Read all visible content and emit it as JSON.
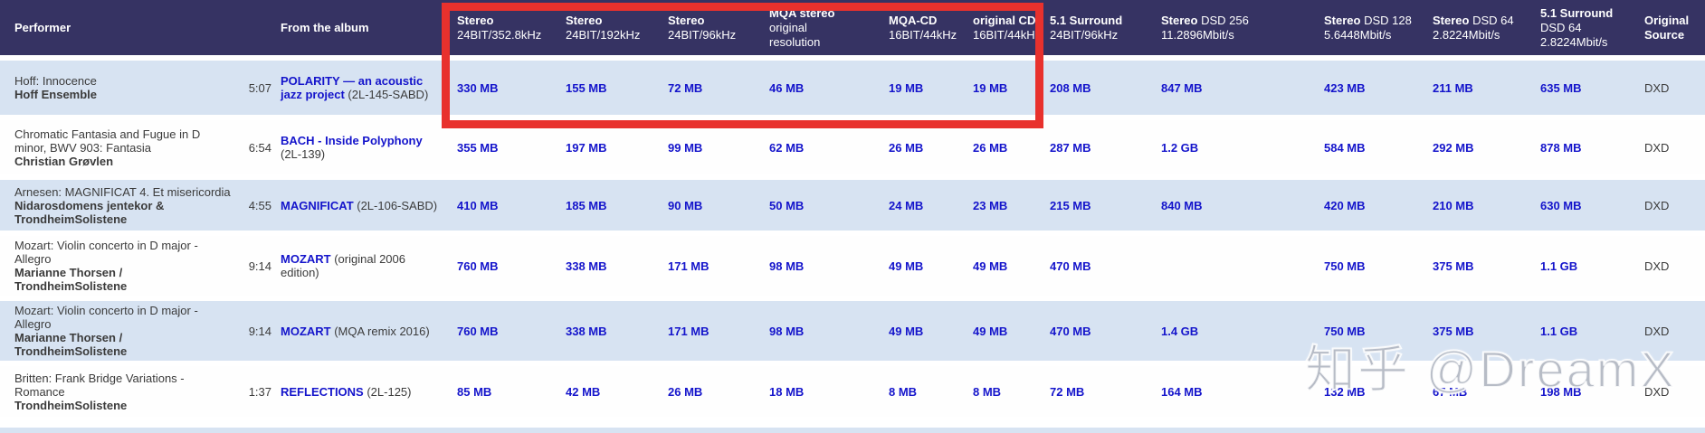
{
  "table": {
    "headers": [
      {
        "key": "performer",
        "strong": "Performer",
        "inline": "",
        "sub": ""
      },
      {
        "key": "duration",
        "strong": "",
        "inline": "",
        "sub": ""
      },
      {
        "key": "from-the-album",
        "strong": "From the album",
        "inline": "",
        "sub": ""
      },
      {
        "key": "stereo-24bit-352-8khz",
        "strong": "Stereo",
        "inline": "",
        "sub": "24BIT/352.8kHz"
      },
      {
        "key": "stereo-24bit-192khz",
        "strong": "Stereo",
        "inline": "",
        "sub": "24BIT/192kHz"
      },
      {
        "key": "stereo-24bit-96khz",
        "strong": "Stereo",
        "inline": "",
        "sub": "24BIT/96kHz"
      },
      {
        "key": "mqa-stereo",
        "strong": "MQA stereo",
        "inline": "",
        "sub": "original\nresolution"
      },
      {
        "key": "mqa-cd",
        "strong": "MQA-CD",
        "inline": "",
        "sub": "16BIT/44kHz"
      },
      {
        "key": "original-cd",
        "strong": "original CD",
        "inline": "",
        "sub": "16BIT/44kHz"
      },
      {
        "key": "5-1-surround-24bit-96khz",
        "strong": "5.1 Surround",
        "inline": "",
        "sub": "24BIT/96kHz"
      },
      {
        "key": "stereo-dsd-256",
        "strong": "Stereo",
        "inline": "DSD 256",
        "sub": "11.2896Mbit/s"
      },
      {
        "key": "stereo-dsd-128",
        "strong": "Stereo",
        "inline": "DSD 128",
        "sub": "5.6448Mbit/s"
      },
      {
        "key": "stereo-dsd-64",
        "strong": "Stereo",
        "inline": "DSD 64",
        "sub": "2.8224Mbit/s"
      },
      {
        "key": "5-1-surround-dsd-64",
        "strong": "5.1 Surround",
        "inline": "",
        "sub": "DSD 64\n2.8224Mbit/s"
      },
      {
        "key": "original-source",
        "strong": "Original\nSource",
        "inline": "",
        "sub": ""
      }
    ],
    "rows": [
      {
        "performer_title": "Hoff: Innocence",
        "performer_name": "Hoff Ensemble",
        "duration": "5:07",
        "album_link": "POLARITY — an acoustic\njazz project",
        "album_rest": " (2L-145-SABD)",
        "sizes": [
          "330 MB",
          "155 MB",
          "72 MB",
          "46 MB",
          "19 MB",
          "19 MB",
          "208 MB",
          "847 MB",
          "423 MB",
          "211 MB",
          "635 MB"
        ],
        "source": "DXD"
      },
      {
        "performer_title": "Chromatic Fantasia and Fugue in D\nminor, BWV 903: Fantasia",
        "performer_name": "Christian Grøvlen",
        "duration": "6:54",
        "album_link": "BACH - Inside Polyphony",
        "album_rest": "\n(2L-139)",
        "sizes": [
          "355 MB",
          "197 MB",
          "99 MB",
          "62 MB",
          "26 MB",
          "26 MB",
          "287 MB",
          "1.2 GB",
          "584 MB",
          "292 MB",
          "878 MB"
        ],
        "source": "DXD"
      },
      {
        "performer_title": "Arnesen: MAGNIFICAT 4. Et misericordia",
        "performer_name": "Nidarosdomens jentekor &\nTrondheimSolistene",
        "duration": "4:55",
        "album_link": "MAGNIFICAT",
        "album_rest": " (2L-106-SABD)",
        "sizes": [
          "410 MB",
          "185 MB",
          "90 MB",
          "50 MB",
          "24 MB",
          "23 MB",
          "215 MB",
          "840 MB",
          "420 MB",
          "210 MB",
          "630 MB"
        ],
        "source": "DXD"
      },
      {
        "performer_title": "Mozart: Violin concerto in D major -\nAllegro",
        "performer_name": "Marianne Thorsen /\nTrondheimSolistene",
        "duration": "9:14",
        "album_link": "MOZART",
        "album_rest": " (original 2006\nedition)",
        "sizes": [
          "760 MB",
          "338 MB",
          "171 MB",
          "98 MB",
          "49 MB",
          "49 MB",
          "470 MB",
          "",
          "750 MB",
          "375 MB",
          "1.1 GB"
        ],
        "source": "DXD"
      },
      {
        "performer_title": "Mozart: Violin concerto in D major -\nAllegro",
        "performer_name": "Marianne Thorsen /\nTrondheimSolistene",
        "duration": "9:14",
        "album_link": "MOZART",
        "album_rest": " (MQA remix 2016)",
        "sizes": [
          "760 MB",
          "338 MB",
          "171 MB",
          "98 MB",
          "49 MB",
          "49 MB",
          "470 MB",
          "1.4 GB",
          "750 MB",
          "375 MB",
          "1.1 GB"
        ],
        "source": "DXD"
      },
      {
        "performer_title": "Britten: Frank Bridge Variations -\nRomance",
        "performer_name": "TrondheimSolistene",
        "duration": "1:37",
        "album_link": "REFLECTIONS",
        "album_rest": " (2L-125)",
        "sizes": [
          "85 MB",
          "42 MB",
          "26 MB",
          "18 MB",
          "8 MB",
          "8 MB",
          "72 MB",
          "164 MB",
          "132 MB",
          "67 MB",
          "198 MB"
        ],
        "source": "DXD"
      }
    ]
  },
  "highlight": {
    "color": "#e8312d"
  },
  "watermark": {
    "text": "知乎 @DreamX"
  },
  "colors": {
    "header_bg": "#363363",
    "row_alt_bg": "#d7e3f2",
    "link_blue": "#1414cb"
  }
}
